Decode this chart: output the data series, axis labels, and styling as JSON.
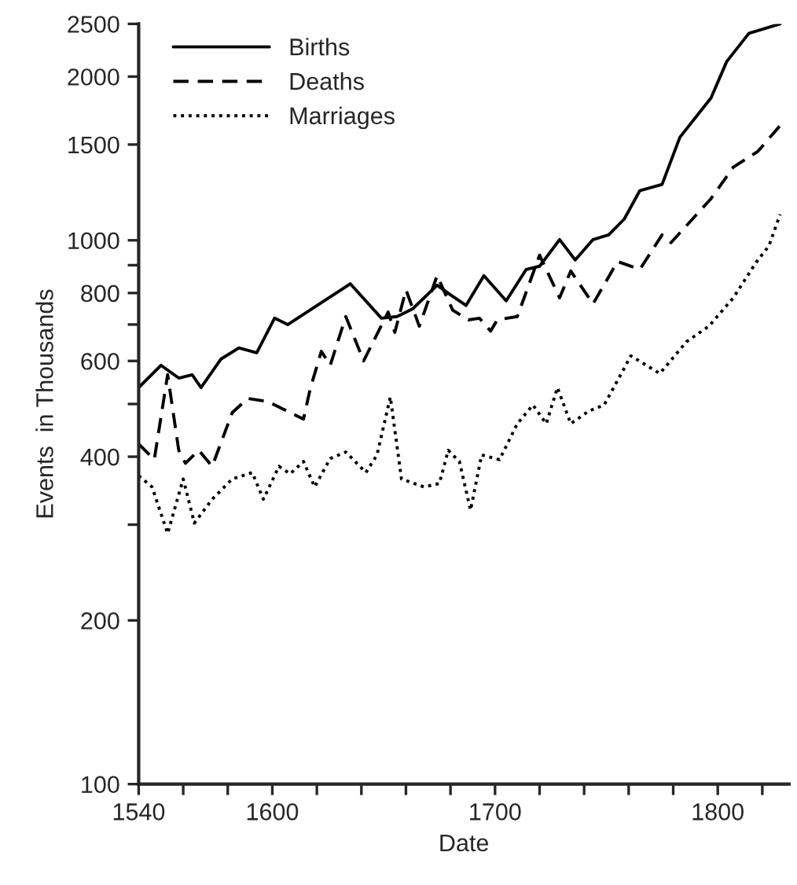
{
  "chart_data": {
    "type": "line",
    "xlabel": "Date",
    "ylabel": "Events  in Thousands",
    "log": "y",
    "legend": "top left",
    "grid": false,
    "marker": "none",
    "xlim": [
      1540,
      1832
    ],
    "ylim": [
      100,
      2500
    ],
    "xticks": [
      1540,
      {
        "value": 1560,
        "label": null
      },
      {
        "value": 1580,
        "label": null
      },
      1600,
      {
        "value": 1620,
        "label": null
      },
      {
        "value": 1640,
        "label": null
      },
      {
        "value": 1660,
        "label": null
      },
      {
        "value": 1680,
        "label": null
      },
      1700,
      {
        "value": 1720,
        "label": null
      },
      {
        "value": 1740,
        "label": null
      },
      {
        "value": 1760,
        "label": null
      },
      {
        "value": 1780,
        "label": null
      },
      1800,
      {
        "value": 1820,
        "label": null
      }
    ],
    "yticks": [
      100,
      200,
      {
        "value": 300,
        "label": null
      },
      400,
      {
        "value": 500,
        "label": null
      },
      600,
      {
        "value": 700,
        "label": null
      },
      800,
      {
        "value": 900,
        "label": null
      },
      1000,
      1500,
      2000,
      2500
    ],
    "series": [
      {
        "name": "Births",
        "color": "#000000",
        "line_style": "solid",
        "x": [
          1540,
          1550,
          1558,
          1564,
          1568,
          1577,
          1585,
          1593,
          1601,
          1607,
          1635,
          1649,
          1656,
          1663,
          1674,
          1680,
          1687,
          1695,
          1705,
          1714,
          1720,
          1729,
          1736,
          1744,
          1751,
          1758,
          1765,
          1775,
          1783,
          1797,
          1804,
          1814,
          1828
        ],
        "values": [
          536,
          589,
          558,
          566,
          536,
          605,
          634,
          621,
          719,
          700,
          832,
          719,
          724,
          748,
          827,
          794,
          759,
          861,
          774,
          884,
          896,
          1003,
          920,
          1003,
          1023,
          1094,
          1234,
          1267,
          1547,
          1828,
          2131,
          2402,
          2500
        ]
      },
      {
        "name": "Deaths",
        "color": "#000000",
        "line_style": "dashed",
        "x": [
          1540,
          1547,
          1553,
          1558,
          1561,
          1567,
          1573,
          1582,
          1589,
          1598,
          1605,
          1614,
          1617,
          1622,
          1626,
          1633,
          1641,
          1652,
          1655,
          1660,
          1666,
          1674,
          1681,
          1688,
          1693,
          1698,
          1701,
          1710,
          1720,
          1723,
          1729,
          1734,
          1744,
          1755,
          1765,
          1775,
          1779,
          1797,
          1807,
          1818,
          1829
        ],
        "values": [
          422,
          395,
          566,
          411,
          389,
          411,
          384,
          482,
          512,
          505,
          489,
          469,
          533,
          625,
          589,
          724,
          600,
          738,
          677,
          811,
          695,
          861,
          744,
          714,
          719,
          681,
          714,
          724,
          939,
          884,
          784,
          878,
          764,
          914,
          884,
          1023,
          990,
          1193,
          1363,
          1457,
          1643
        ]
      },
      {
        "name": "Marriages",
        "color": "#000000",
        "line_style": "dotted",
        "x": [
          1540,
          1546,
          1553,
          1560,
          1565,
          1573,
          1582,
          1591,
          1596,
          1603,
          1608,
          1614,
          1619,
          1626,
          1633,
          1642,
          1647,
          1653,
          1658,
          1668,
          1675,
          1679,
          1684,
          1689,
          1694,
          1702,
          1710,
          1717,
          1723,
          1728,
          1734,
          1742,
          1749,
          1756,
          1761,
          1774,
          1786,
          1796,
          1807,
          1817,
          1823,
          1828
        ],
        "values": [
          369,
          352,
          289,
          364,
          302,
          334,
          364,
          374,
          334,
          384,
          372,
          392,
          352,
          397,
          408,
          374,
          403,
          515,
          364,
          352,
          357,
          411,
          392,
          319,
          403,
          395,
          460,
          498,
          460,
          536,
          460,
          485,
          498,
          562,
          613,
          569,
          651,
          695,
          784,
          908,
          977,
          1116
        ]
      }
    ]
  }
}
